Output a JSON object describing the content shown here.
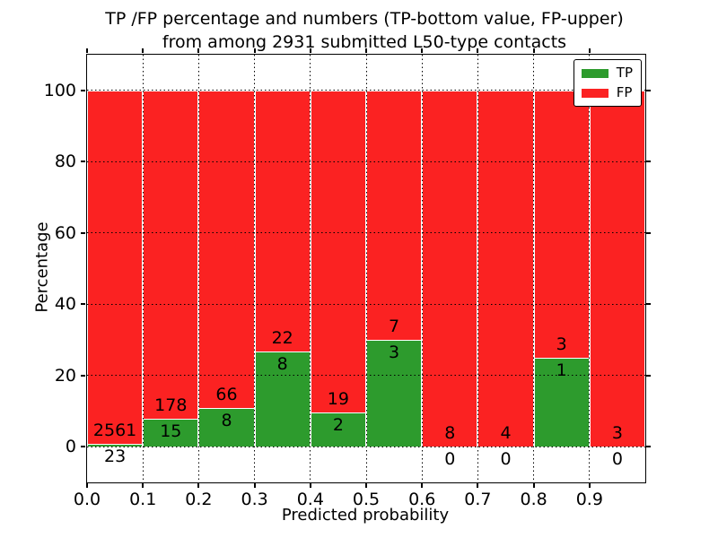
{
  "chart_data": {
    "type": "bar",
    "stacked": true,
    "title_line1": "TP /FP percentage and numbers (TP-bottom value, FP-upper)",
    "title_line2": "from among 2931 submitted L50-type contacts",
    "xlabel": "Predicted probability",
    "ylabel": "Percentage",
    "xlim": [
      0.0,
      1.0
    ],
    "ylim": [
      -10,
      110
    ],
    "grid": true,
    "legend_position": "upper-right",
    "bin_width": 0.1,
    "bin_starts": [
      0.0,
      0.1,
      0.2,
      0.3,
      0.4,
      0.5,
      0.6,
      0.7,
      0.8,
      0.9
    ],
    "xtick_labels": [
      "0.0",
      "0.1",
      "0.2",
      "0.3",
      "0.4",
      "0.5",
      "0.6",
      "0.7",
      "0.8",
      "0.9"
    ],
    "ytick_values": [
      0,
      20,
      40,
      60,
      80,
      100
    ],
    "series": [
      {
        "name": "TP",
        "color": "#2d9b2d",
        "counts": [
          23,
          15,
          8,
          8,
          2,
          3,
          0,
          0,
          1,
          0
        ]
      },
      {
        "name": "FP",
        "color": "#fb2222",
        "counts": [
          2561,
          178,
          66,
          22,
          19,
          7,
          8,
          4,
          3,
          3
        ]
      }
    ],
    "tp_percent_per_bin": [
      0.89,
      7.77,
      10.81,
      26.67,
      9.52,
      30.0,
      0.0,
      0.0,
      25.0,
      0.0
    ]
  }
}
